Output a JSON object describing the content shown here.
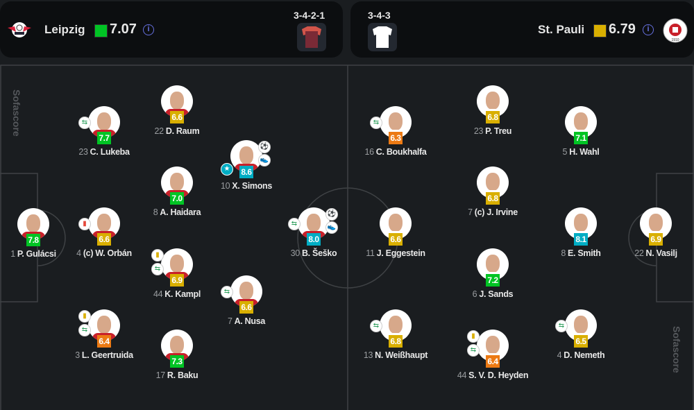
{
  "home": {
    "name": "Leipzig",
    "rating": "7.07",
    "rating_color": "#00c424",
    "formation": "3-4-2-1",
    "kit_color": "#7a2a36",
    "logo": "RB Leipzig"
  },
  "away": {
    "name": "St. Pauli",
    "rating": "6.79",
    "rating_color": "#d9af00",
    "formation": "3-4-3",
    "kit_color": "#ffffff",
    "logo": "FC St. Pauli 1910"
  },
  "watermark": "Sofascore",
  "rating_colors": {
    "green": "#00c424",
    "yellow": "#d9af00",
    "teal": "#00adc4",
    "orange": "#ec7a14"
  },
  "home_players": [
    {
      "num": "1",
      "name": "P. Gulácsi",
      "rating": "7.8",
      "color": "green",
      "icons": []
    },
    {
      "num": "4",
      "name": "(c) W. Orbán",
      "rating": "6.6",
      "color": "yellow",
      "icons": [
        "red-card"
      ]
    },
    {
      "num": "23",
      "name": "C. Lukeba",
      "rating": "7.7",
      "color": "green",
      "icons": [
        "substitution"
      ]
    },
    {
      "num": "3",
      "name": "L. Geertruida",
      "rating": "6.4",
      "color": "orange",
      "icons": [
        "yellow-card",
        "substitution"
      ]
    },
    {
      "num": "22",
      "name": "D. Raum",
      "rating": "6.6",
      "color": "yellow",
      "icons": []
    },
    {
      "num": "8",
      "name": "A. Haidara",
      "rating": "7.0",
      "color": "green",
      "icons": []
    },
    {
      "num": "44",
      "name": "K. Kampl",
      "rating": "6.9",
      "color": "yellow",
      "icons": [
        "yellow-card",
        "substitution"
      ]
    },
    {
      "num": "17",
      "name": "R. Baku",
      "rating": "7.3",
      "color": "green",
      "icons": []
    },
    {
      "num": "10",
      "name": "X. Simons",
      "rating": "8.6",
      "color": "teal",
      "icons": [
        "goal",
        "assist",
        "star"
      ]
    },
    {
      "num": "7",
      "name": "A. Nusa",
      "rating": "6.6",
      "color": "yellow",
      "icons": [
        "substitution"
      ]
    },
    {
      "num": "30",
      "name": "B. Šeško",
      "rating": "8.0",
      "color": "teal",
      "icons": [
        "goal",
        "assist",
        "substitution"
      ]
    }
  ],
  "away_players": [
    {
      "num": "16",
      "name": "C. Boukhalfa",
      "rating": "6.3",
      "color": "orange",
      "icons": [
        "substitution"
      ]
    },
    {
      "num": "11",
      "name": "J. Eggestein",
      "rating": "6.6",
      "color": "yellow",
      "icons": []
    },
    {
      "num": "13",
      "name": "N. Weißhaupt",
      "rating": "6.8",
      "color": "yellow",
      "icons": [
        "substitution"
      ]
    },
    {
      "num": "23",
      "name": "P. Treu",
      "rating": "6.8",
      "color": "yellow",
      "icons": []
    },
    {
      "num": "7",
      "name": "(c) J. Irvine",
      "rating": "6.8",
      "color": "yellow",
      "icons": []
    },
    {
      "num": "6",
      "name": "J. Sands",
      "rating": "7.2",
      "color": "green",
      "icons": []
    },
    {
      "num": "44",
      "name": "S. V. D. Heyden",
      "rating": "6.4",
      "color": "orange",
      "icons": [
        "yellow-card",
        "substitution"
      ]
    },
    {
      "num": "5",
      "name": "H. Wahl",
      "rating": "7.1",
      "color": "green",
      "icons": []
    },
    {
      "num": "8",
      "name": "E. Smith",
      "rating": "8.1",
      "color": "teal",
      "icons": []
    },
    {
      "num": "4",
      "name": "D. Nemeth",
      "rating": "6.5",
      "color": "yellow",
      "icons": [
        "substitution"
      ]
    },
    {
      "num": "22",
      "name": "N. Vasilj",
      "rating": "6.9",
      "color": "yellow",
      "icons": []
    }
  ]
}
